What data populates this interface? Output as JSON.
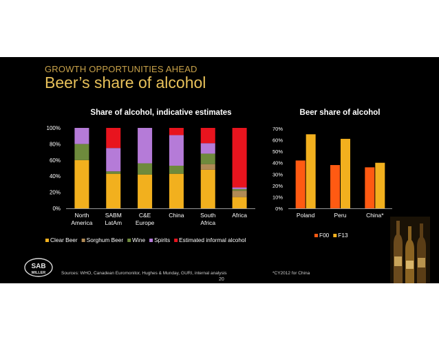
{
  "header": {
    "kicker": "GROWTH OPPORTUNITIES AHEAD",
    "title": "Beer’s share of alcohol"
  },
  "footer": {
    "source_left": "Sources: WHO, Canadean  Euromonitor, Hughes & Munday,  GURI, internal analysis",
    "source_right": "*CY2012 for China",
    "page_number": "20"
  },
  "logo": {
    "line1": "SAB",
    "line2": "MILLER"
  },
  "colors": {
    "background": "#000000",
    "title": "#e8c15a",
    "axis_text": "#ffffff"
  },
  "chart_data": [
    {
      "type": "bar",
      "stacked": true,
      "title": "Share of alcohol, indicative estimates",
      "categories": [
        [
          "North",
          "America"
        ],
        [
          "SABM",
          "LatAm"
        ],
        [
          "C&E",
          "Europe"
        ],
        [
          "China"
        ],
        [
          "South",
          "Africa"
        ],
        [
          "Africa"
        ]
      ],
      "yticks": [
        "0%",
        "20%",
        "40%",
        "60%",
        "80%",
        "100%"
      ],
      "ylim": [
        0,
        100
      ],
      "legend_position": "bottom",
      "series": [
        {
          "name": "Clear Beer",
          "color": "#f2b01e",
          "values": [
            60,
            43,
            42,
            43,
            48,
            14
          ]
        },
        {
          "name": "Sorghum Beer",
          "color": "#b08a55",
          "values": [
            0,
            0,
            0,
            0,
            7,
            8
          ]
        },
        {
          "name": "Wine",
          "color": "#6e8a3c",
          "values": [
            20,
            3,
            14,
            10,
            13,
            2
          ]
        },
        {
          "name": "Spirits",
          "color": "#b57bd8",
          "values": [
            20,
            29,
            44,
            38,
            13,
            2
          ]
        },
        {
          "name": "Estimated informal alcohol",
          "color": "#e8141e",
          "values": [
            0,
            25,
            0,
            9,
            19,
            74
          ]
        }
      ]
    },
    {
      "type": "bar",
      "title": "Beer share of alcohol",
      "categories": [
        [
          "Poland"
        ],
        [
          "Peru"
        ],
        [
          "China*"
        ]
      ],
      "yticks": [
        "0%",
        "10%",
        "20%",
        "30%",
        "40%",
        "50%",
        "60%",
        "70%"
      ],
      "ylim": [
        0,
        70
      ],
      "legend_position": "bottom",
      "series": [
        {
          "name": "F00",
          "color": "#ff5a12",
          "values": [
            42,
            38,
            36
          ]
        },
        {
          "name": "F13",
          "color": "#f2b01e",
          "values": [
            65,
            61,
            40
          ]
        }
      ]
    }
  ]
}
